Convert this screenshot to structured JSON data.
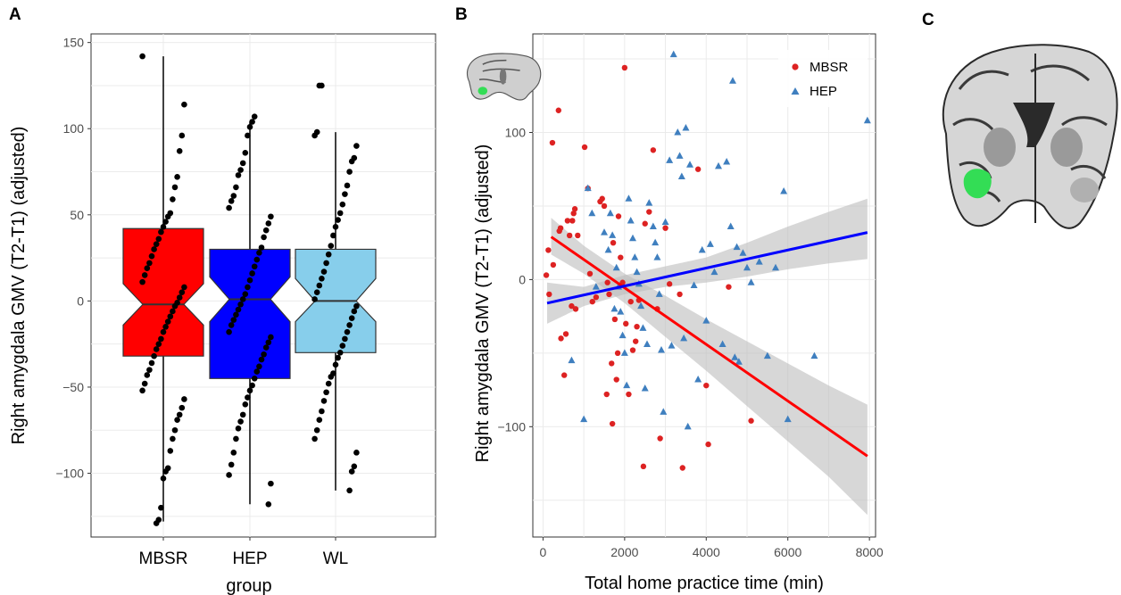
{
  "panels": {
    "a": "A",
    "b": "B",
    "c": "C"
  },
  "colors": {
    "mbsr_box": "#ff0000",
    "hep_box": "#0000ff",
    "wl_box": "#87ceeb",
    "mbsr_points": "#dd2222",
    "hep_points": "#3f7fbf",
    "mbsr_line": "#ff0000",
    "hep_line": "#0000ff",
    "ribbon": "#bdbdbd",
    "roi": "#33dd55"
  },
  "chart_data": [
    {
      "type": "box",
      "xlabel": "group",
      "ylabel": "Right amygdala GMV (T2-T1) (adjusted)",
      "categories": [
        "MBSR",
        "HEP",
        "WL"
      ],
      "y_ticks": [
        "−100",
        "−50",
        "0",
        "50",
        "100",
        "150"
      ],
      "y_tick_values": [
        -100,
        -50,
        0,
        50,
        100,
        150
      ],
      "ylim": [
        -137,
        155
      ],
      "boxes": [
        {
          "group": "MBSR",
          "q1": -32,
          "median": -2,
          "q3": 42,
          "whisker_low": -128,
          "whisker_high": 142,
          "notch_low": -14,
          "notch_high": 10
        },
        {
          "group": "HEP",
          "q1": -45,
          "median": 1,
          "q3": 30,
          "whisker_low": -118,
          "whisker_high": 104,
          "notch_low": -12,
          "notch_high": 14
        },
        {
          "group": "WL",
          "q1": -30,
          "median": 0,
          "q3": 30,
          "whisker_low": -110,
          "whisker_high": 98,
          "notch_low": -12,
          "notch_high": 13
        }
      ],
      "points": {
        "MBSR": [
          142,
          114,
          96,
          87,
          72,
          66,
          59,
          51,
          49,
          46,
          43,
          40,
          36,
          33,
          30,
          26,
          22,
          19,
          15,
          11,
          8,
          5,
          2,
          -1,
          -3,
          -6,
          -9,
          -12,
          -15,
          -18,
          -22,
          -25,
          -28,
          -32,
          -36,
          -40,
          -43,
          -48,
          -52,
          -57,
          -62,
          -66,
          -69,
          -75,
          -80,
          -87,
          -97,
          -99,
          -103,
          -120,
          -127,
          -129
        ],
        "HEP": [
          107,
          104,
          101,
          96,
          86,
          80,
          76,
          73,
          66,
          61,
          58,
          54,
          49,
          45,
          41,
          37,
          31,
          28,
          24,
          20,
          16,
          12,
          8,
          4,
          1,
          -2,
          -5,
          -8,
          -11,
          -14,
          -18,
          -21,
          -24,
          -27,
          -31,
          -34,
          -38,
          -41,
          -45,
          -49,
          -52,
          -56,
          -60,
          -66,
          -70,
          -74,
          -80,
          -88,
          -95,
          -101,
          -106,
          -118
        ],
        "WL": [
          125,
          125,
          98,
          96,
          90,
          83,
          81,
          75,
          67,
          62,
          56,
          51,
          47,
          43,
          38,
          32,
          27,
          22,
          17,
          13,
          9,
          5,
          1,
          -3,
          -6,
          -10,
          -14,
          -18,
          -22,
          -26,
          -30,
          -33,
          -37,
          -42,
          -44,
          -48,
          -53,
          -58,
          -64,
          -69,
          -75,
          -80,
          -88,
          -96,
          -99,
          -110
        ]
      }
    },
    {
      "type": "scatter",
      "xlabel": "Total home practice time (min)",
      "ylabel": "Right amygdala GMV (T2-T1) (adjusted)",
      "x_ticks": [
        "0",
        "2000",
        "4000",
        "6000",
        "8000"
      ],
      "x_tick_values": [
        0,
        2000,
        4000,
        6000,
        8000
      ],
      "y_ticks": [
        "−100",
        "0",
        "100"
      ],
      "y_tick_values": [
        -100,
        0,
        100
      ],
      "xlim": [
        -250,
        8150
      ],
      "ylim": [
        -175,
        167
      ],
      "legend": [
        "MBSR",
        "HEP"
      ],
      "series": [
        {
          "name": "MBSR",
          "marker": "circle",
          "points": [
            [
              80,
              3
            ],
            [
              130,
              20
            ],
            [
              150,
              -10
            ],
            [
              230,
              93
            ],
            [
              250,
              10
            ],
            [
              380,
              115
            ],
            [
              400,
              33
            ],
            [
              430,
              35
            ],
            [
              440,
              -40
            ],
            [
              520,
              -65
            ],
            [
              560,
              -37
            ],
            [
              600,
              40
            ],
            [
              650,
              30
            ],
            [
              700,
              -18
            ],
            [
              720,
              40
            ],
            [
              750,
              45
            ],
            [
              780,
              48
            ],
            [
              800,
              -20
            ],
            [
              850,
              30
            ],
            [
              1020,
              90
            ],
            [
              1100,
              62
            ],
            [
              1150,
              4
            ],
            [
              1210,
              -15
            ],
            [
              1300,
              -12
            ],
            [
              1400,
              53
            ],
            [
              1450,
              55
            ],
            [
              1500,
              50
            ],
            [
              1560,
              -78
            ],
            [
              1580,
              -2
            ],
            [
              1620,
              -10
            ],
            [
              1680,
              -57
            ],
            [
              1700,
              -98
            ],
            [
              1720,
              25
            ],
            [
              1760,
              -27
            ],
            [
              1800,
              -68
            ],
            [
              1830,
              -50
            ],
            [
              1850,
              43
            ],
            [
              1900,
              15
            ],
            [
              1950,
              -2
            ],
            [
              2000,
              144
            ],
            [
              2030,
              -30
            ],
            [
              2100,
              -78
            ],
            [
              2150,
              -15
            ],
            [
              2200,
              -48
            ],
            [
              2270,
              -42
            ],
            [
              2300,
              -32
            ],
            [
              2350,
              -14
            ],
            [
              2460,
              -127
            ],
            [
              2500,
              38
            ],
            [
              2600,
              46
            ],
            [
              2700,
              88
            ],
            [
              2800,
              -20
            ],
            [
              2870,
              -108
            ],
            [
              3000,
              35
            ],
            [
              3100,
              -3
            ],
            [
              3350,
              -10
            ],
            [
              3420,
              -128
            ],
            [
              3800,
              75
            ],
            [
              4000,
              -72
            ],
            [
              4050,
              -112
            ],
            [
              4550,
              -5
            ],
            [
              5100,
              -96
            ]
          ]
        },
        {
          "name": "HEP",
          "marker": "triangle",
          "points": [
            [
              700,
              -55
            ],
            [
              1000,
              -95
            ],
            [
              1100,
              62
            ],
            [
              1200,
              45
            ],
            [
              1300,
              -5
            ],
            [
              1500,
              32
            ],
            [
              1600,
              20
            ],
            [
              1650,
              45
            ],
            [
              1700,
              30
            ],
            [
              1750,
              -20
            ],
            [
              1800,
              8
            ],
            [
              1850,
              -5
            ],
            [
              1900,
              -22
            ],
            [
              1950,
              -38
            ],
            [
              2000,
              -50
            ],
            [
              2050,
              -72
            ],
            [
              2100,
              55
            ],
            [
              2150,
              40
            ],
            [
              2200,
              28
            ],
            [
              2250,
              15
            ],
            [
              2300,
              5
            ],
            [
              2350,
              -3
            ],
            [
              2400,
              -18
            ],
            [
              2450,
              -33
            ],
            [
              2500,
              -74
            ],
            [
              2550,
              -44
            ],
            [
              2600,
              52
            ],
            [
              2700,
              36
            ],
            [
              2750,
              25
            ],
            [
              2800,
              15
            ],
            [
              2850,
              -10
            ],
            [
              2900,
              -48
            ],
            [
              2950,
              -90
            ],
            [
              3000,
              39
            ],
            [
              3100,
              81
            ],
            [
              3150,
              -45
            ],
            [
              3200,
              153
            ],
            [
              3300,
              100
            ],
            [
              3350,
              84
            ],
            [
              3400,
              70
            ],
            [
              3450,
              -40
            ],
            [
              3500,
              103
            ],
            [
              3550,
              -100
            ],
            [
              3600,
              78
            ],
            [
              3700,
              -4
            ],
            [
              3800,
              -68
            ],
            [
              3900,
              20
            ],
            [
              4000,
              -28
            ],
            [
              4100,
              24
            ],
            [
              4200,
              5
            ],
            [
              4300,
              77
            ],
            [
              4400,
              -44
            ],
            [
              4500,
              80
            ],
            [
              4600,
              36
            ],
            [
              4650,
              135
            ],
            [
              4700,
              -53
            ],
            [
              4750,
              22
            ],
            [
              4800,
              -56
            ],
            [
              4900,
              18
            ],
            [
              5000,
              8
            ],
            [
              5100,
              -2
            ],
            [
              5300,
              12
            ],
            [
              5500,
              -52
            ],
            [
              5700,
              8
            ],
            [
              5900,
              60
            ],
            [
              6000,
              -95
            ],
            [
              6650,
              -52
            ],
            [
              7950,
              108
            ]
          ]
        }
      ],
      "fits": [
        {
          "name": "MBSR",
          "x": [
            200,
            7950
          ],
          "y": [
            29,
            -120
          ],
          "band": {
            "x": [
              200,
              1000,
              2000,
              3000,
              4000,
              5000,
              6000,
              7000,
              7950
            ],
            "lower": [
              17,
              4,
              -16,
              -39,
              -62,
              -86,
              -110,
              -134,
              -160
            ],
            "upper": [
              42,
              23,
              4,
              -11,
              -27,
              -42,
              -57,
              -72,
              -85
            ]
          }
        },
        {
          "name": "HEP",
          "x": [
            100,
            7950
          ],
          "y": [
            -16,
            32
          ],
          "band": {
            "x": [
              100,
              1000,
              2000,
              3000,
              4000,
              5000,
              6000,
              7000,
              7950
            ],
            "lower": [
              -30,
              -18,
              -10,
              -5,
              -2,
              2,
              7,
              11,
              14
            ],
            "upper": [
              -2,
              -5,
              3,
              9,
              15,
              25,
              36,
              46,
              55
            ]
          }
        }
      ]
    }
  ]
}
